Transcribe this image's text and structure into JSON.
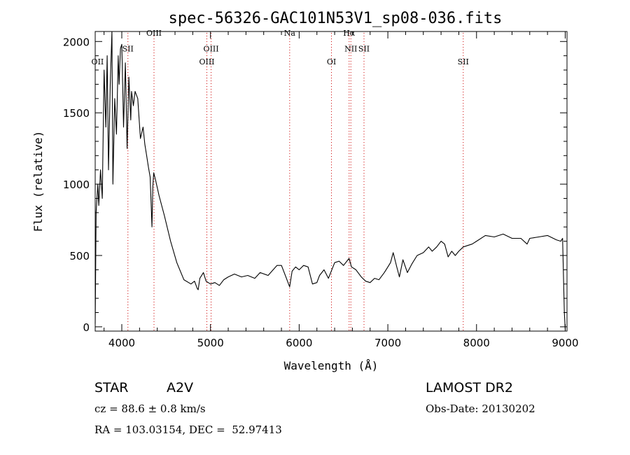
{
  "chart_data": {
    "type": "line",
    "title": "spec-56326-GAC101N53V1_sp08-036.fits",
    "xlabel": "Wavelength (Å)",
    "ylabel": "Flux (relative)",
    "xlim": [
      3700,
      9020
    ],
    "ylim": [
      -30,
      2070
    ],
    "xticks": [
      4000,
      5000,
      6000,
      7000,
      8000,
      9000
    ],
    "yticks": [
      0,
      500,
      1000,
      1500,
      2000
    ],
    "series": [
      {
        "name": "flux",
        "x": [
          3700,
          3710,
          3720,
          3730,
          3740,
          3760,
          3780,
          3800,
          3820,
          3835,
          3850,
          3870,
          3889,
          3900,
          3920,
          3940,
          3960,
          3970,
          3985,
          4000,
          4020,
          4040,
          4060,
          4080,
          4101,
          4110,
          4130,
          4150,
          4180,
          4210,
          4240,
          4260,
          4280,
          4300,
          4320,
          4340,
          4350,
          4360,
          4380,
          4420,
          4480,
          4550,
          4620,
          4700,
          4780,
          4820,
          4850,
          4861,
          4880,
          4920,
          4950,
          5000,
          5050,
          5100,
          5150,
          5200,
          5270,
          5350,
          5420,
          5500,
          5560,
          5650,
          5750,
          5800,
          5850,
          5893,
          5920,
          5960,
          6000,
          6050,
          6100,
          6150,
          6200,
          6230,
          6280,
          6330,
          6400,
          6450,
          6500,
          6563,
          6590,
          6640,
          6700,
          6750,
          6800,
          6850,
          6900,
          6960,
          7000,
          7030,
          7060,
          7100,
          7130,
          7170,
          7220,
          7270,
          7330,
          7400,
          7460,
          7500,
          7550,
          7600,
          7640,
          7680,
          7720,
          7760,
          7800,
          7850,
          7900,
          7950,
          8000,
          8100,
          8200,
          8300,
          8400,
          8500,
          8570,
          8600,
          8700,
          8800,
          8900,
          8950,
          8970,
          8990,
          9000
        ],
        "values": [
          20,
          800,
          900,
          1000,
          850,
          1100,
          900,
          1800,
          1400,
          1900,
          1100,
          1700,
          2070,
          1000,
          1600,
          1350,
          1900,
          1700,
          1950,
          1980,
          1400,
          1850,
          1250,
          1750,
          1450,
          1650,
          1550,
          1650,
          1600,
          1320,
          1400,
          1280,
          1200,
          1120,
          1050,
          700,
          980,
          1080,
          1030,
          920,
          780,
          600,
          450,
          330,
          300,
          320,
          270,
          260,
          340,
          380,
          320,
          300,
          310,
          290,
          330,
          350,
          370,
          350,
          360,
          340,
          380,
          360,
          430,
          430,
          350,
          280,
          390,
          420,
          400,
          430,
          420,
          300,
          310,
          360,
          400,
          340,
          450,
          460,
          430,
          480,
          420,
          400,
          350,
          320,
          310,
          340,
          330,
          380,
          420,
          450,
          520,
          420,
          350,
          470,
          380,
          440,
          500,
          520,
          560,
          530,
          560,
          600,
          580,
          490,
          530,
          500,
          530,
          560,
          570,
          580,
          600,
          640,
          630,
          650,
          620,
          620,
          580,
          620,
          630,
          640,
          610,
          600,
          620,
          100,
          -20
        ]
      }
    ],
    "spectral_lines": [
      {
        "label": "OII",
        "wavelength": 3727,
        "label_y": 1840,
        "guide": false
      },
      {
        "label": "SII",
        "wavelength": 4069,
        "label_y": 1930,
        "guide": true
      },
      {
        "label": "OIII",
        "wavelength": 4363,
        "label_y": 2040,
        "guide": true
      },
      {
        "label": "OIII",
        "wavelength": 4959,
        "label_y": 1840,
        "guide": true
      },
      {
        "label": "OIII",
        "wavelength": 5007,
        "label_y": 1930,
        "guide": true
      },
      {
        "label": "Na",
        "wavelength": 5893,
        "label_y": 2040,
        "guide": true
      },
      {
        "label": "OI",
        "wavelength": 6364,
        "label_y": 1840,
        "guide": true
      },
      {
        "label": "Hα",
        "wavelength": 6563,
        "label_y": 2040,
        "guide": true
      },
      {
        "label": "NII",
        "wavelength": 6583,
        "label_y": 1930,
        "guide": true
      },
      {
        "label": "SII",
        "wavelength": 6731,
        "label_y": 1930,
        "guide": true
      },
      {
        "label": "SII",
        "wavelength": 7850,
        "label_y": 1840,
        "guide": true
      }
    ],
    "guide_color": "#cc0000",
    "line_color": "#000000",
    "grid": false
  },
  "info": {
    "class_label": "STAR",
    "subclass": "A2V",
    "survey": "LAMOST DR2",
    "redshift": "cz = 88.6 ± 0.8 km/s",
    "obs_date": "Obs-Date: 20130202",
    "coords": "RA = 103.03154, DEC =  52.97413"
  }
}
